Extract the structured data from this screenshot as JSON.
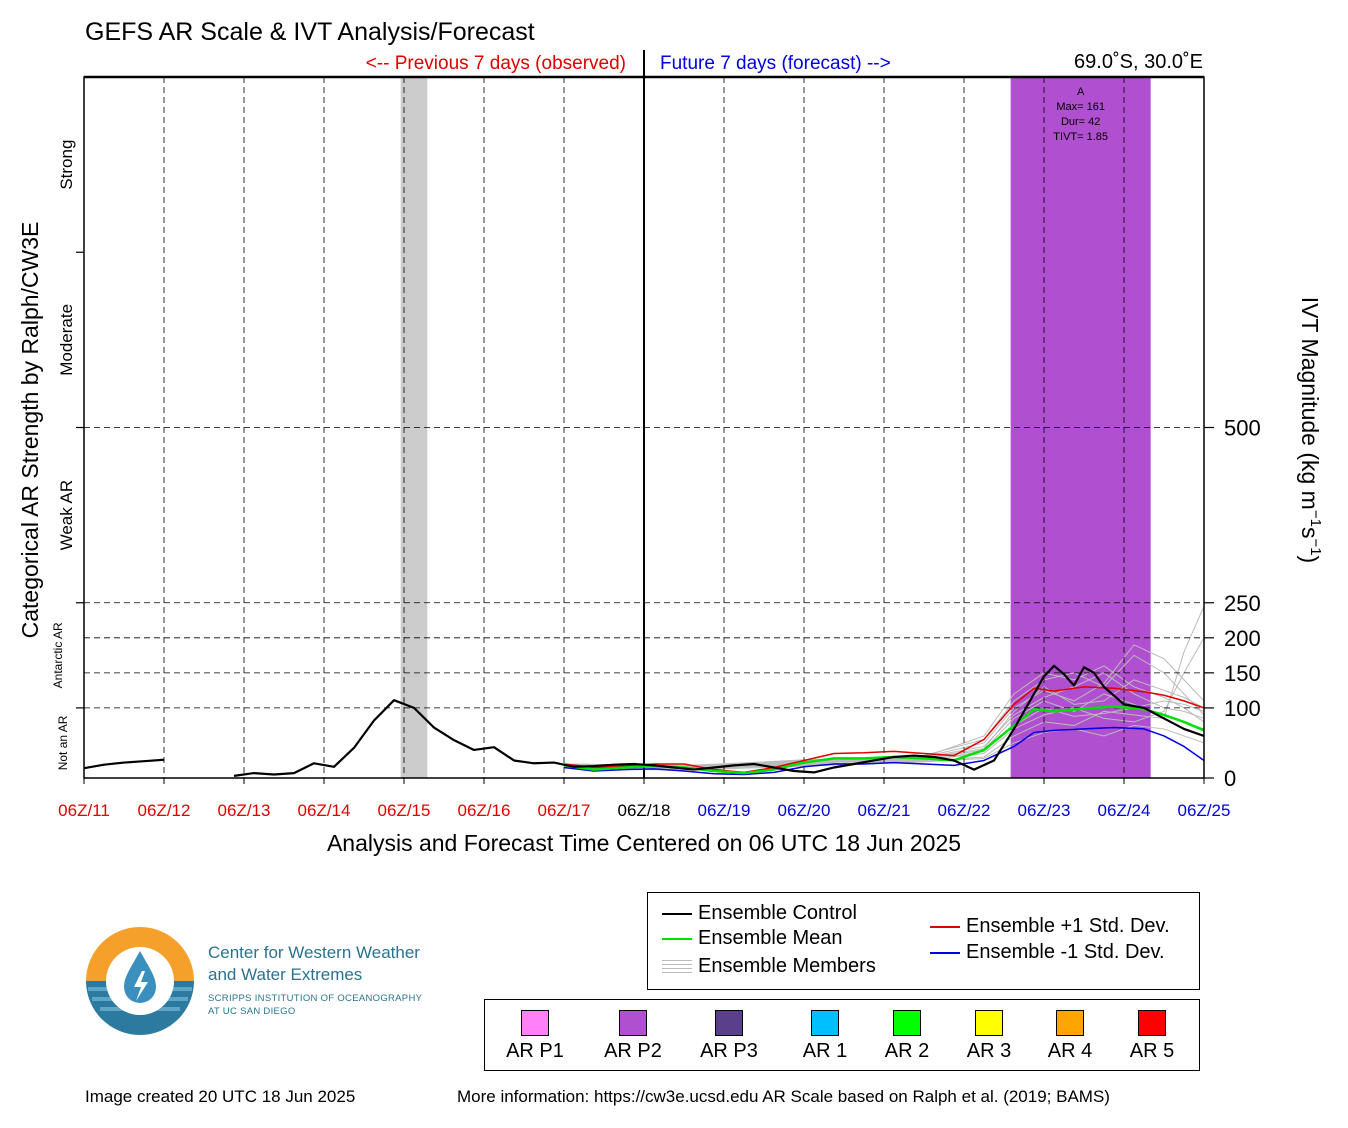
{
  "header": {
    "title": "GEFS AR Scale & IVT Analysis/Forecast",
    "previous_label": "<-- Previous 7 days (observed)",
    "future_label": "Future 7 days (forecast) -->",
    "location": "69.0˚S, 30.0˚E"
  },
  "colors": {
    "previous": "#e00000",
    "future": "#0000e0",
    "control": "#000000",
    "mean": "#00e000",
    "plus_std": "#e00000",
    "minus_std": "#0000e0",
    "members": "#bbbbbb",
    "ar_event": "#b04fcf",
    "gray_band": "#cccccc"
  },
  "chart_data": {
    "type": "line",
    "title": "GEFS AR Scale & IVT Analysis/Forecast",
    "xlabel": "Analysis and Forecast Time Centered on 06 UTC 18 Jun 2025",
    "ylabel_left": "Categorical AR Strength by Ralph/CW3E",
    "ylabel_right": "IVT Magnitude (kg m",
    "ylabel_right_sup1": "−1",
    "ylabel_right_mid": "s",
    "ylabel_right_sup2": "−1",
    "ylabel_right_end": ")",
    "x_unit": "hours relative to 06Z/11 Jun 2025",
    "xlim": [
      0,
      336
    ],
    "ylim": [
      0,
      1000
    ],
    "x_ticks": [
      {
        "label": "06Z/11",
        "color": "#e00000"
      },
      {
        "label": "06Z/12",
        "color": "#e00000"
      },
      {
        "label": "06Z/13",
        "color": "#e00000"
      },
      {
        "label": "06Z/14",
        "color": "#e00000"
      },
      {
        "label": "06Z/15",
        "color": "#e00000"
      },
      {
        "label": "06Z/16",
        "color": "#e00000"
      },
      {
        "label": "06Z/17",
        "color": "#e00000"
      },
      {
        "label": "06Z/18",
        "color": "#000000"
      },
      {
        "label": "06Z/19",
        "color": "#0000e0"
      },
      {
        "label": "06Z/20",
        "color": "#0000e0"
      },
      {
        "label": "06Z/21",
        "color": "#0000e0"
      },
      {
        "label": "06Z/22",
        "color": "#0000e0"
      },
      {
        "label": "06Z/23",
        "color": "#0000e0"
      },
      {
        "label": "06Z/24",
        "color": "#0000e0"
      },
      {
        "label": "06Z/25",
        "color": "#0000e0"
      }
    ],
    "y_ticks": [
      "0",
      "100",
      "150",
      "200",
      "250",
      "500"
    ],
    "y_tick_values": [
      0,
      100,
      150,
      200,
      250,
      500
    ],
    "categories_left": [
      "Not an AR",
      "Antarctic AR",
      "Weak AR",
      "Moderate",
      "Strong"
    ],
    "category_bounds": [
      0,
      100,
      250,
      500,
      750,
      1000
    ],
    "gray_band": [
      95,
      103
    ],
    "ar_event": {
      "label": "A",
      "max": "Max= 161",
      "dur": "Dur= 42",
      "tivt": "TIVT= 1.85",
      "x_range": [
        278,
        320
      ],
      "ivt_low": [
        6,
        2,
        130,
        130,
        2,
        6
      ],
      "ivt_low_x": [
        278,
        288,
        292,
        306,
        310,
        320
      ]
    },
    "series": [
      {
        "name": "Ensemble Control",
        "x": [
          0,
          6,
          12,
          18,
          24,
          45,
          51,
          57,
          63,
          69,
          75,
          81,
          87,
          93,
          99,
          105,
          111,
          117,
          123,
          129,
          135,
          141,
          147,
          153,
          159,
          165,
          171,
          177,
          183,
          189,
          195,
          201,
          207,
          213,
          219,
          225,
          231,
          237,
          243,
          249,
          255,
          261,
          267,
          273,
          279,
          285,
          288,
          291,
          294,
          297,
          300,
          303,
          306,
          312,
          318,
          324,
          330,
          336
        ],
        "y": [
          14,
          19,
          22,
          24,
          26,
          3,
          7,
          5,
          7,
          21,
          16,
          43,
          82,
          111,
          100,
          72,
          54,
          40,
          44,
          25,
          21,
          22,
          16,
          17,
          19,
          20,
          18,
          15,
          12,
          15,
          18,
          20,
          15,
          10,
          8,
          15,
          20,
          25,
          30,
          32,
          30,
          25,
          12,
          25,
          70,
          120,
          145,
          160,
          148,
          132,
          158,
          150,
          130,
          105,
          100,
          85,
          70,
          60
        ],
        "gaps_after_x": [
          24
        ]
      },
      {
        "name": "Ensemble Mean",
        "x": [
          144,
          153,
          162,
          171,
          180,
          189,
          198,
          207,
          216,
          225,
          234,
          243,
          252,
          261,
          270,
          279,
          285,
          291,
          300,
          309,
          318,
          324,
          330,
          336
        ],
        "y": [
          18,
          12,
          15,
          17,
          15,
          10,
          7,
          12,
          22,
          28,
          28,
          30,
          28,
          25,
          40,
          75,
          98,
          95,
          99,
          102,
          98,
          90,
          80,
          68
        ],
        "gaps_after_x": []
      },
      {
        "name": "Ensemble +1 Std. Dev.",
        "x": [
          144,
          153,
          162,
          171,
          180,
          189,
          198,
          207,
          216,
          225,
          234,
          243,
          252,
          261,
          270,
          279,
          285,
          291,
          300,
          309,
          318,
          324,
          330,
          336
        ],
        "y": [
          20,
          15,
          17,
          20,
          20,
          12,
          8,
          15,
          25,
          35,
          36,
          38,
          35,
          32,
          55,
          105,
          128,
          124,
          130,
          128,
          123,
          118,
          110,
          100
        ],
        "gaps_after_x": []
      },
      {
        "name": "Ensemble -1 Std. Dev.",
        "x": [
          144,
          153,
          162,
          171,
          180,
          189,
          198,
          207,
          216,
          225,
          234,
          243,
          252,
          261,
          270,
          279,
          285,
          291,
          300,
          309,
          318,
          324,
          330,
          336
        ],
        "y": [
          15,
          10,
          12,
          13,
          10,
          6,
          5,
          8,
          16,
          20,
          20,
          22,
          20,
          18,
          25,
          45,
          65,
          68,
          70,
          72,
          70,
          60,
          45,
          25
        ],
        "gaps_after_x": []
      }
    ],
    "members": [
      {
        "x": [
          144,
          180,
          216,
          252,
          270,
          279,
          288,
          297,
          306,
          315,
          324,
          330,
          336
        ],
        "y": [
          18,
          15,
          22,
          27,
          40,
          85,
          110,
          95,
          120,
          105,
          90,
          80,
          70
        ]
      },
      {
        "x": [
          144,
          180,
          216,
          252,
          270,
          279,
          288,
          297,
          306,
          315,
          324,
          330,
          336
        ],
        "y": [
          15,
          12,
          20,
          30,
          50,
          100,
          125,
          110,
          135,
          190,
          170,
          140,
          110
        ]
      },
      {
        "x": [
          144,
          180,
          216,
          252,
          270,
          279,
          288,
          297,
          306,
          315,
          324,
          330,
          336
        ],
        "y": [
          20,
          18,
          25,
          32,
          55,
          110,
          140,
          150,
          130,
          175,
          150,
          120,
          90
        ]
      },
      {
        "x": [
          144,
          180,
          216,
          252,
          270,
          279,
          288,
          297,
          306,
          315,
          324,
          330,
          336
        ],
        "y": [
          16,
          14,
          18,
          24,
          30,
          60,
          80,
          75,
          95,
          90,
          85,
          180,
          245
        ]
      },
      {
        "x": [
          144,
          180,
          216,
          252,
          270,
          279,
          288,
          297,
          306,
          315,
          324,
          330,
          336
        ],
        "y": [
          17,
          13,
          21,
          26,
          35,
          70,
          90,
          100,
          85,
          80,
          95,
          150,
          200
        ]
      },
      {
        "x": [
          144,
          180,
          216,
          252,
          270,
          279,
          288,
          297,
          306,
          315,
          324,
          330,
          336
        ],
        "y": [
          19,
          16,
          24,
          29,
          45,
          90,
          115,
          130,
          150,
          120,
          100,
          95,
          85
        ]
      },
      {
        "x": [
          144,
          180,
          216,
          252,
          270,
          279,
          288,
          297,
          306,
          315,
          324,
          330,
          336
        ],
        "y": [
          14,
          11,
          17,
          23,
          28,
          50,
          65,
          70,
          60,
          75,
          70,
          60,
          50
        ]
      },
      {
        "x": [
          144,
          180,
          216,
          252,
          270,
          279,
          288,
          297,
          306,
          315,
          324,
          330,
          336
        ],
        "y": [
          18,
          15,
          23,
          28,
          42,
          95,
          130,
          105,
          110,
          140,
          125,
          115,
          100
        ]
      },
      {
        "x": [
          144,
          180,
          216,
          252,
          270,
          279,
          288,
          297,
          306,
          315,
          324,
          330,
          336
        ],
        "y": [
          16,
          12,
          19,
          25,
          38,
          75,
          100,
          88,
          92,
          100,
          110,
          105,
          95
        ]
      },
      {
        "x": [
          144,
          180,
          216,
          252,
          270,
          279,
          288,
          297,
          306,
          315,
          324,
          330,
          336
        ],
        "y": [
          20,
          17,
          26,
          30,
          60,
          120,
          150,
          140,
          160,
          130,
          115,
          100,
          80
        ]
      }
    ],
    "legend": [
      "Ensemble Control",
      "Ensemble Mean",
      "Ensemble Members",
      "Ensemble +1 Std. Dev.",
      "Ensemble -1 Std. Dev."
    ],
    "legend_placement": "bottom-right"
  },
  "scale_legend": [
    {
      "label": "AR P1",
      "color": "#ff80f8"
    },
    {
      "label": "AR P2",
      "color": "#b04fcf"
    },
    {
      "label": "AR P3",
      "color": "#5a3f8a"
    },
    {
      "label": "AR 1",
      "color": "#00bfff"
    },
    {
      "label": "AR 2",
      "color": "#00ff00"
    },
    {
      "label": "AR 3",
      "color": "#ffff00"
    },
    {
      "label": "AR 4",
      "color": "#ffa500"
    },
    {
      "label": "AR 5",
      "color": "#ff0000"
    }
  ],
  "org": {
    "name_line1": "Center for Western Weather",
    "name_line2": "and Water Extremes",
    "sub_line1": "SCRIPPS INSTITUTION OF OCEANOGRAPHY",
    "sub_line2": "AT UC SAN DIEGO"
  },
  "footer": {
    "created": "Image created 20 UTC 18 Jun 2025",
    "info": "More information: https://cw3e.ucsd.edu AR Scale based on Ralph et al. (2019; BAMS)"
  }
}
